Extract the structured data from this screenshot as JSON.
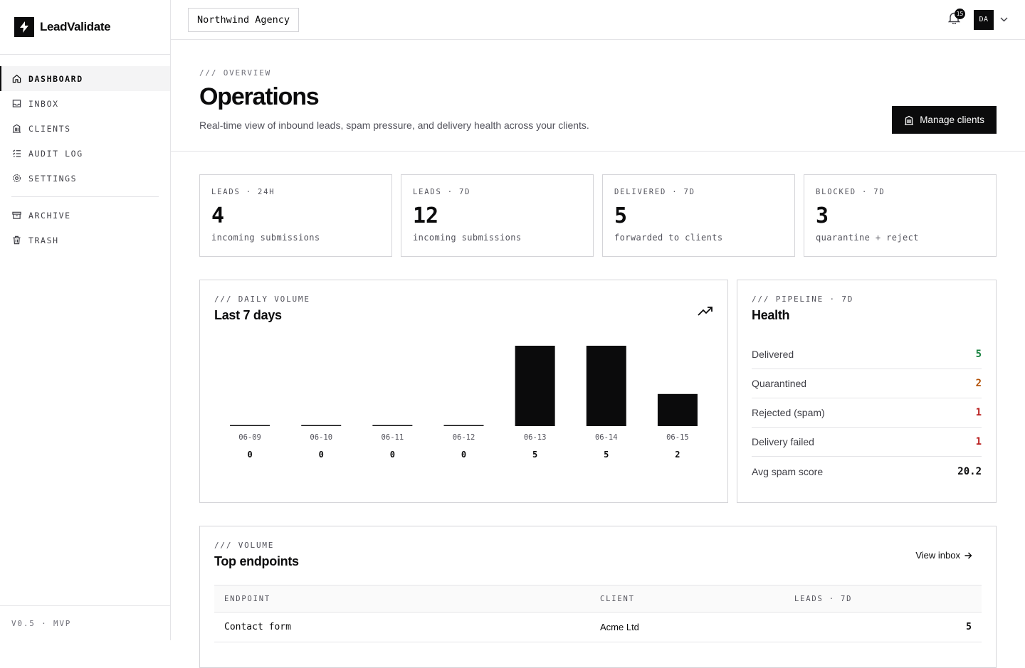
{
  "brand": {
    "name": "LeadValidate"
  },
  "sidebar": {
    "items": [
      {
        "label": "DASHBOARD",
        "icon": "home-icon",
        "active": true
      },
      {
        "label": "INBOX",
        "icon": "inbox-icon"
      },
      {
        "label": "CLIENTS",
        "icon": "building-icon"
      },
      {
        "label": "AUDIT LOG",
        "icon": "list-check-icon"
      },
      {
        "label": "SETTINGS",
        "icon": "gear-icon"
      }
    ],
    "secondary": [
      {
        "label": "ARCHIVE",
        "icon": "archive-icon"
      },
      {
        "label": "TRASH",
        "icon": "trash-icon"
      }
    ],
    "version": "V0.5 · MVP"
  },
  "topbar": {
    "org": "Northwind Agency",
    "notifications": "15",
    "avatar": "DA"
  },
  "header": {
    "eyebrow": "/// OVERVIEW",
    "title": "Operations",
    "subtitle": "Real-time view of inbound leads, spam pressure, and delivery health across your clients.",
    "primary_button": "Manage clients"
  },
  "stats": [
    {
      "label": "LEADS · 24H",
      "value": "4",
      "desc": "incoming submissions"
    },
    {
      "label": "LEADS · 7D",
      "value": "12",
      "desc": "incoming submissions"
    },
    {
      "label": "DELIVERED · 7D",
      "value": "5",
      "desc": "forwarded to clients"
    },
    {
      "label": "BLOCKED · 7D",
      "value": "3",
      "desc": "quarantine + reject"
    }
  ],
  "volume_panel": {
    "eyebrow": "/// DAILY VOLUME",
    "title": "Last 7 days"
  },
  "chart_data": {
    "type": "bar",
    "categories": [
      "06-09",
      "06-10",
      "06-11",
      "06-12",
      "06-13",
      "06-14",
      "06-15"
    ],
    "values": [
      0,
      0,
      0,
      0,
      5,
      5,
      2
    ],
    "title": "Last 7 days",
    "xlabel": "",
    "ylabel": "",
    "ylim": [
      0,
      5
    ],
    "grid": false,
    "bar_color": "#0b0b0c"
  },
  "health_panel": {
    "eyebrow": "/// PIPELINE · 7D",
    "title": "Health",
    "rows": [
      {
        "label": "Delivered",
        "value": "5",
        "color": "#15803d"
      },
      {
        "label": "Quarantined",
        "value": "2",
        "color": "#b45309"
      },
      {
        "label": "Rejected (spam)",
        "value": "1",
        "color": "#b91c1c"
      },
      {
        "label": "Delivery failed",
        "value": "1",
        "color": "#b91c1c"
      },
      {
        "label": "Avg spam score",
        "value": "20.2",
        "color": "#0b0b0c"
      }
    ]
  },
  "endpoints_panel": {
    "eyebrow": "/// VOLUME",
    "title": "Top endpoints",
    "link": "View inbox",
    "columns": [
      "ENDPOINT",
      "CLIENT",
      "LEADS · 7D"
    ],
    "rows": [
      {
        "endpoint": "Contact form",
        "client": "Acme Ltd",
        "leads": "5"
      }
    ]
  }
}
